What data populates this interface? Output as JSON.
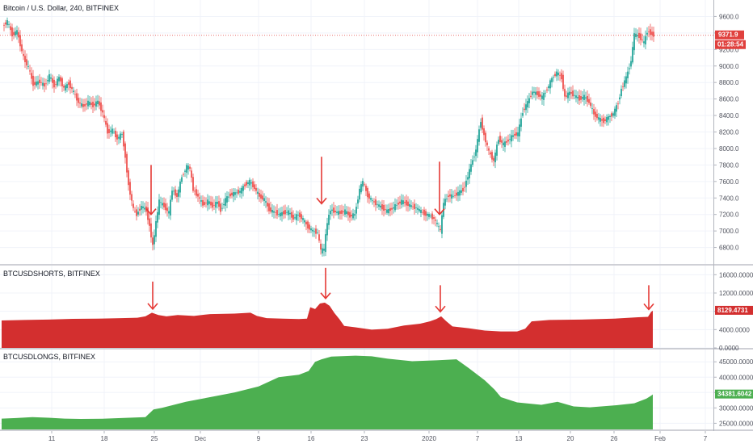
{
  "chart_data": [
    {
      "type": "candlestick",
      "title": "Bitcoin / U.S. Dollar, 240, BITFINEX",
      "ylim": [
        6600,
        9800
      ],
      "yticks": [
        "9600.0",
        "9400.0",
        "9200.0",
        "9000.0",
        "8800.0",
        "8600.0",
        "8400.0",
        "8200.0",
        "8000.0",
        "7800.0",
        "7600.0",
        "7400.0",
        "7200.0",
        "7000.0",
        "6800.0"
      ],
      "ytick_values": [
        9600,
        9400,
        9200,
        9000,
        8800,
        8600,
        8400,
        8200,
        8000,
        7800,
        7600,
        7400,
        7200,
        7000,
        6800
      ],
      "last_price": "9371.9",
      "countdown": "01:28:54",
      "price_color": "#e0403d",
      "up_color": "#26a69a",
      "down_color": "#ef5350",
      "path_points": [
        [
          4,
          9480
        ],
        [
          10,
          9540
        ],
        [
          16,
          9380
        ],
        [
          22,
          9420
        ],
        [
          30,
          9100
        ],
        [
          36,
          8980
        ],
        [
          42,
          8780
        ],
        [
          50,
          8810
        ],
        [
          56,
          8760
        ],
        [
          62,
          8880
        ],
        [
          68,
          8760
        ],
        [
          74,
          8860
        ],
        [
          80,
          8730
        ],
        [
          86,
          8790
        ],
        [
          92,
          8680
        ],
        [
          98,
          8560
        ],
        [
          104,
          8510
        ],
        [
          110,
          8560
        ],
        [
          116,
          8520
        ],
        [
          122,
          8570
        ],
        [
          128,
          8430
        ],
        [
          134,
          8200
        ],
        [
          140,
          8220
        ],
        [
          146,
          8120
        ],
        [
          152,
          8180
        ],
        [
          156,
          7900
        ],
        [
          160,
          7560
        ],
        [
          166,
          7260
        ],
        [
          170,
          7200
        ],
        [
          176,
          7300
        ],
        [
          182,
          7250
        ],
        [
          186,
          7060
        ],
        [
          190,
          6820
        ],
        [
          194,
          7100
        ],
        [
          198,
          7360
        ],
        [
          204,
          7300
        ],
        [
          210,
          7220
        ],
        [
          214,
          7500
        ],
        [
          220,
          7420
        ],
        [
          226,
          7660
        ],
        [
          232,
          7780
        ],
        [
          236,
          7760
        ],
        [
          240,
          7500
        ],
        [
          246,
          7420
        ],
        [
          252,
          7320
        ],
        [
          258,
          7360
        ],
        [
          264,
          7300
        ],
        [
          270,
          7350
        ],
        [
          274,
          7250
        ],
        [
          280,
          7380
        ],
        [
          286,
          7440
        ],
        [
          292,
          7460
        ],
        [
          298,
          7480
        ],
        [
          304,
          7560
        ],
        [
          310,
          7600
        ],
        [
          316,
          7520
        ],
        [
          322,
          7420
        ],
        [
          328,
          7380
        ],
        [
          334,
          7260
        ],
        [
          340,
          7230
        ],
        [
          346,
          7200
        ],
        [
          352,
          7220
        ],
        [
          358,
          7230
        ],
        [
          364,
          7150
        ],
        [
          370,
          7200
        ],
        [
          376,
          7140
        ],
        [
          382,
          7050
        ],
        [
          388,
          7000
        ],
        [
          394,
          6980
        ],
        [
          398,
          6760
        ],
        [
          402,
          6780
        ],
        [
          406,
          7100
        ],
        [
          410,
          7260
        ],
        [
          416,
          7230
        ],
        [
          422,
          7220
        ],
        [
          428,
          7240
        ],
        [
          434,
          7180
        ],
        [
          440,
          7200
        ],
        [
          446,
          7500
        ],
        [
          450,
          7600
        ],
        [
          456,
          7430
        ],
        [
          462,
          7360
        ],
        [
          468,
          7320
        ],
        [
          474,
          7280
        ],
        [
          480,
          7240
        ],
        [
          486,
          7270
        ],
        [
          492,
          7320
        ],
        [
          498,
          7360
        ],
        [
          504,
          7330
        ],
        [
          510,
          7300
        ],
        [
          516,
          7280
        ],
        [
          520,
          7250
        ],
        [
          526,
          7210
        ],
        [
          532,
          7190
        ],
        [
          538,
          7150
        ],
        [
          542,
          7080
        ],
        [
          546,
          7000
        ],
        [
          550,
          7340
        ],
        [
          556,
          7430
        ],
        [
          562,
          7420
        ],
        [
          568,
          7460
        ],
        [
          574,
          7500
        ],
        [
          578,
          7600
        ],
        [
          584,
          7800
        ],
        [
          590,
          7980
        ],
        [
          596,
          8340
        ],
        [
          600,
          8160
        ],
        [
          606,
          7960
        ],
        [
          612,
          7850
        ],
        [
          618,
          8120
        ],
        [
          624,
          8050
        ],
        [
          630,
          8100
        ],
        [
          636,
          8160
        ],
        [
          642,
          8180
        ],
        [
          648,
          8450
        ],
        [
          654,
          8560
        ],
        [
          660,
          8690
        ],
        [
          666,
          8660
        ],
        [
          672,
          8620
        ],
        [
          678,
          8720
        ],
        [
          684,
          8850
        ],
        [
          690,
          8920
        ],
        [
          696,
          8860
        ],
        [
          700,
          8620
        ],
        [
          706,
          8680
        ],
        [
          712,
          8640
        ],
        [
          718,
          8600
        ],
        [
          724,
          8630
        ],
        [
          730,
          8560
        ],
        [
          736,
          8420
        ],
        [
          742,
          8360
        ],
        [
          748,
          8330
        ],
        [
          754,
          8380
        ],
        [
          760,
          8420
        ],
        [
          766,
          8560
        ],
        [
          770,
          8720
        ],
        [
          776,
          8860
        ],
        [
          782,
          9060
        ],
        [
          786,
          9380
        ],
        [
          792,
          9360
        ],
        [
          798,
          9280
        ],
        [
          802,
          9420
        ],
        [
          806,
          9400
        ],
        [
          810,
          9371.9
        ]
      ],
      "annotations": [
        {
          "x": 187,
          "y_top": 7800,
          "y_bottom": 7200
        },
        {
          "x": 398,
          "y_top": 7900,
          "y_bottom": 7330
        },
        {
          "x": 544,
          "y_top": 7840,
          "y_bottom": 7200
        }
      ],
      "annotation_color": "#e53935"
    },
    {
      "type": "area",
      "title": "BTCUSDSHORTS, BITFINEX",
      "ylim": [
        0,
        18000
      ],
      "yticks": [
        "16000.0000",
        "12000.0000",
        "8000.0000",
        "4000.0000",
        "0.0000"
      ],
      "ytick_values": [
        16000,
        12000,
        8000,
        4000,
        0
      ],
      "last_value": "8129.4731",
      "color": "#d32f2f",
      "points": [
        [
          2,
          6000
        ],
        [
          30,
          6100
        ],
        [
          60,
          6200
        ],
        [
          90,
          6350
        ],
        [
          120,
          6400
        ],
        [
          150,
          6500
        ],
        [
          170,
          6600
        ],
        [
          180,
          6900
        ],
        [
          188,
          7700
        ],
        [
          196,
          7200
        ],
        [
          206,
          6900
        ],
        [
          220,
          7200
        ],
        [
          240,
          7000
        ],
        [
          260,
          7400
        ],
        [
          290,
          7500
        ],
        [
          310,
          7700
        ],
        [
          318,
          7000
        ],
        [
          330,
          6500
        ],
        [
          350,
          6400
        ],
        [
          370,
          6300
        ],
        [
          380,
          6400
        ],
        [
          384,
          8900
        ],
        [
          390,
          8500
        ],
        [
          396,
          9700
        ],
        [
          402,
          9900
        ],
        [
          408,
          9200
        ],
        [
          414,
          7600
        ],
        [
          420,
          6300
        ],
        [
          426,
          4800
        ],
        [
          440,
          4500
        ],
        [
          460,
          4000
        ],
        [
          480,
          4200
        ],
        [
          500,
          4900
        ],
        [
          520,
          5300
        ],
        [
          532,
          5800
        ],
        [
          540,
          6300
        ],
        [
          546,
          6900
        ],
        [
          552,
          5900
        ],
        [
          560,
          4700
        ],
        [
          580,
          4300
        ],
        [
          600,
          3800
        ],
        [
          620,
          3600
        ],
        [
          640,
          3600
        ],
        [
          650,
          4200
        ],
        [
          658,
          5800
        ],
        [
          680,
          6100
        ],
        [
          720,
          6200
        ],
        [
          760,
          6400
        ],
        [
          790,
          6700
        ],
        [
          802,
          6800
        ],
        [
          806,
          7900
        ],
        [
          808,
          8129.4731
        ]
      ],
      "annotations": [
        {
          "x": 189,
          "y_top": 14500,
          "y_bottom": 8500
        },
        {
          "x": 403,
          "y_top": 17500,
          "y_bottom": 10800
        },
        {
          "x": 545,
          "y_top": 13700,
          "y_bottom": 7900
        },
        {
          "x": 803,
          "y_top": 13700,
          "y_bottom": 8400
        }
      ],
      "annotation_color": "#e53935"
    },
    {
      "type": "area",
      "title": "BTCUSDLONGS, BITFINEX",
      "ylim": [
        23000,
        49000
      ],
      "yticks": [
        "45000.0000",
        "40000.0000",
        "35000.0000",
        "30000.0000",
        "25000.0000"
      ],
      "ytick_values": [
        45000,
        40000,
        35000,
        30000,
        25000
      ],
      "last_value": "34381.6042",
      "color": "#4caf50",
      "points": [
        [
          2,
          26500
        ],
        [
          20,
          26700
        ],
        [
          40,
          27000
        ],
        [
          60,
          26800
        ],
        [
          80,
          26500
        ],
        [
          100,
          26400
        ],
        [
          130,
          26500
        ],
        [
          160,
          26800
        ],
        [
          180,
          27000
        ],
        [
          190,
          29500
        ],
        [
          200,
          30000
        ],
        [
          230,
          32000
        ],
        [
          260,
          33500
        ],
        [
          290,
          35000
        ],
        [
          320,
          37000
        ],
        [
          345,
          40000
        ],
        [
          370,
          40800
        ],
        [
          382,
          42000
        ],
        [
          390,
          45000
        ],
        [
          398,
          45800
        ],
        [
          410,
          46700
        ],
        [
          440,
          47000
        ],
        [
          460,
          46800
        ],
        [
          480,
          46000
        ],
        [
          510,
          45200
        ],
        [
          540,
          45500
        ],
        [
          565,
          45800
        ],
        [
          580,
          43000
        ],
        [
          600,
          39000
        ],
        [
          612,
          36000
        ],
        [
          620,
          33500
        ],
        [
          640,
          31800
        ],
        [
          670,
          31000
        ],
        [
          690,
          32000
        ],
        [
          710,
          30500
        ],
        [
          730,
          30200
        ],
        [
          760,
          30800
        ],
        [
          785,
          31500
        ],
        [
          800,
          33000
        ],
        [
          806,
          34000
        ],
        [
          808,
          34381.6042
        ]
      ]
    }
  ],
  "x_axis": {
    "labels": [
      {
        "x": 64,
        "text": "11"
      },
      {
        "x": 129,
        "text": "18"
      },
      {
        "x": 191,
        "text": "25"
      },
      {
        "x": 248,
        "text": "Dec"
      },
      {
        "x": 320,
        "text": "9"
      },
      {
        "x": 385,
        "text": "16"
      },
      {
        "x": 451,
        "text": "23"
      },
      {
        "x": 531,
        "text": "2020"
      },
      {
        "x": 591,
        "text": "7"
      },
      {
        "x": 642,
        "text": "13"
      },
      {
        "x": 706,
        "text": "20"
      },
      {
        "x": 760,
        "text": "26"
      },
      {
        "x": 817,
        "text": "Feb"
      },
      {
        "x": 873,
        "text": "7"
      }
    ]
  }
}
